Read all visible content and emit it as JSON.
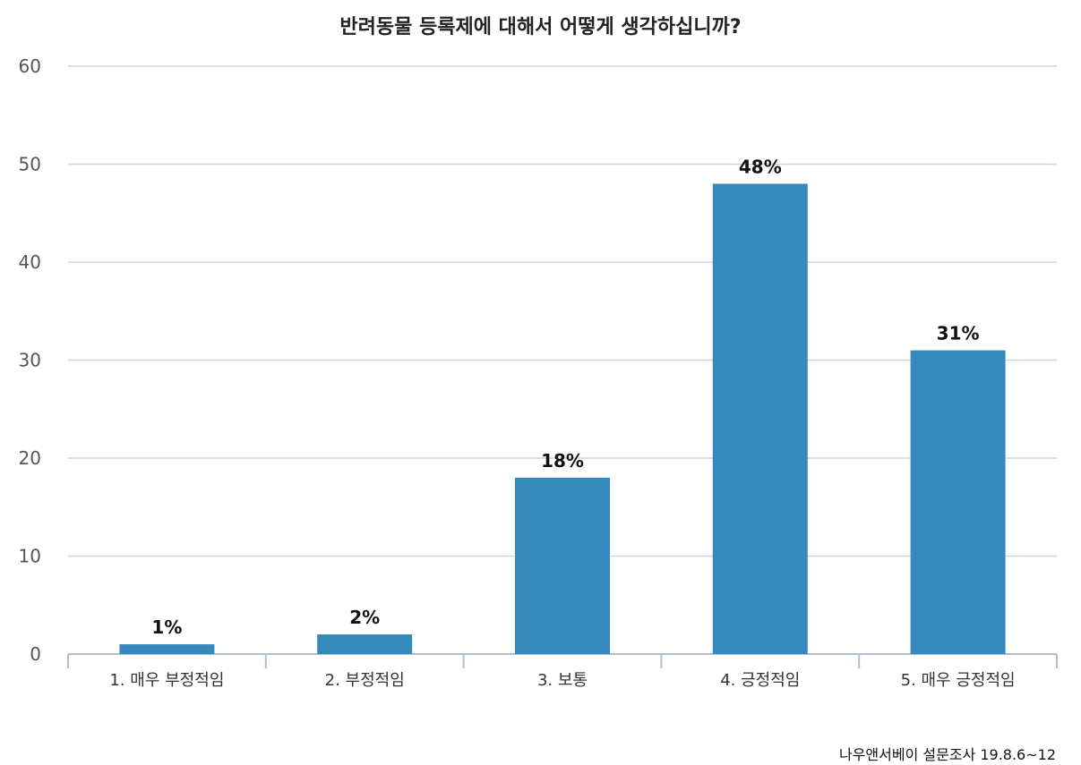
{
  "chart_data": {
    "type": "bar",
    "title": "반려동물 등록제에 대해서 어떻게 생각하십니까?",
    "categories": [
      "1. 매우 부정적임",
      "2. 부정적임",
      "3. 보통",
      "4. 긍정적임",
      "5. 매우 긍정적임"
    ],
    "values": [
      1,
      2,
      18,
      48,
      31
    ],
    "data_labels": [
      "1%",
      "2%",
      "18%",
      "48%",
      "31%"
    ],
    "xlabel": "",
    "ylabel": "",
    "ylim": [
      0,
      60
    ],
    "yticks": [
      "0",
      "10",
      "20",
      "30",
      "40",
      "50",
      "60"
    ],
    "grid": true,
    "legend": "none",
    "bar_color": "#3589bd"
  },
  "source": "나우앤서베이 설문조사 19.8.6~12"
}
